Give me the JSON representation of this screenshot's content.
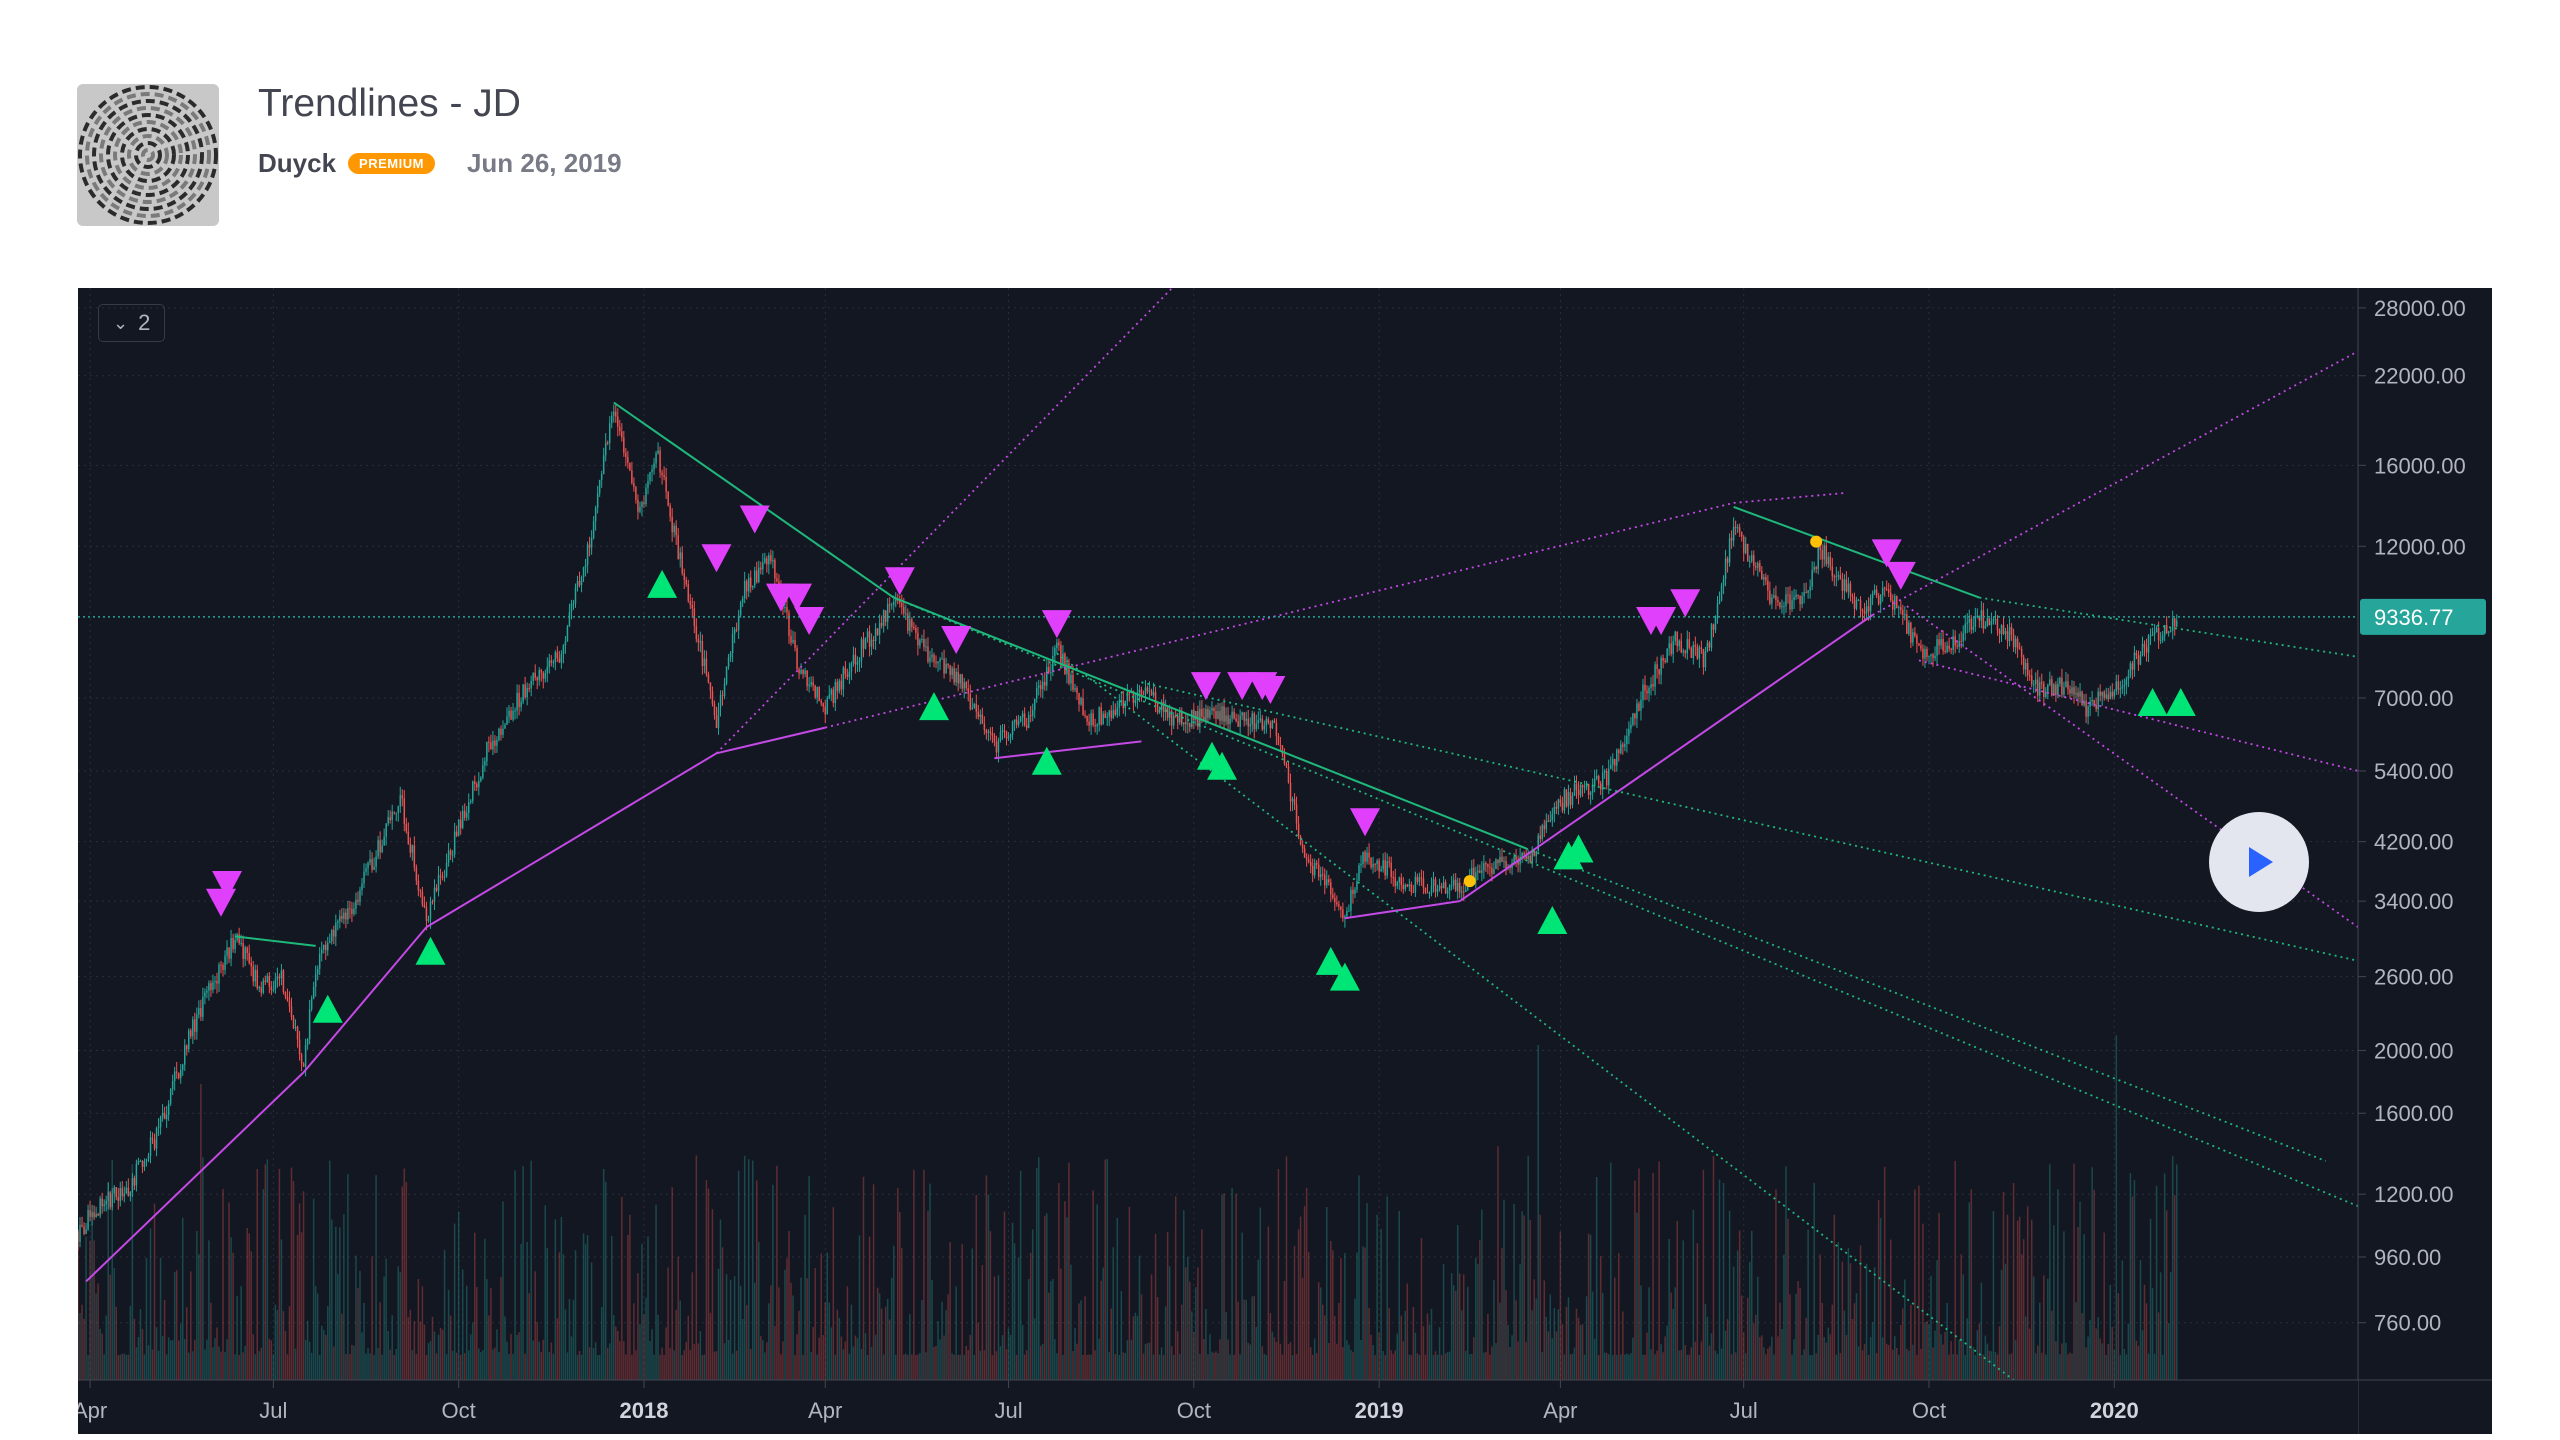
{
  "idea": {
    "title": "Trendlines - JD",
    "author": "Duyck",
    "badge": "PREMIUM",
    "date": "Jun 26, 2019",
    "avatar_icon": "spiral-avatar-icon"
  },
  "legend": {
    "count": "2",
    "icon": "chevron-down-icon"
  },
  "play_icon": "play-icon",
  "colors": {
    "background": "#131722",
    "up": "#26a69a",
    "down": "#ef5350",
    "support": "#c549e6",
    "resistance": "#1fb87b",
    "sell_marker": "#e040fb",
    "buy_marker": "#00e676",
    "last_price": "#26a69a",
    "pivot_dot": "#ffc107"
  },
  "chart_data": {
    "type": "candlestick",
    "y_scale": "log",
    "ylim": [
      620,
      29000
    ],
    "y_ticks": [
      {
        "value": 28000,
        "label": "28000.00"
      },
      {
        "value": 22000,
        "label": "22000.00"
      },
      {
        "value": 16000,
        "label": "16000.00"
      },
      {
        "value": 12000,
        "label": "12000.00"
      },
      {
        "value": 7000,
        "label": "7000.00"
      },
      {
        "value": 5400,
        "label": "5400.00"
      },
      {
        "value": 4200,
        "label": "4200.00"
      },
      {
        "value": 3400,
        "label": "3400.00"
      },
      {
        "value": 2600,
        "label": "2600.00"
      },
      {
        "value": 2000,
        "label": "2000.00"
      },
      {
        "value": 1600,
        "label": "1600.00"
      },
      {
        "value": 1200,
        "label": "1200.00"
      },
      {
        "value": 960,
        "label": "960.00"
      },
      {
        "value": 760,
        "label": "760.00"
      }
    ],
    "last_price": {
      "value": 9336.77,
      "label": "9336.77"
    },
    "x_ticks": [
      {
        "date": "2017-04-01",
        "label": "Apr",
        "bold": false
      },
      {
        "date": "2017-07-01",
        "label": "Jul",
        "bold": false
      },
      {
        "date": "2017-10-01",
        "label": "Oct",
        "bold": false
      },
      {
        "date": "2018-01-01",
        "label": "2018",
        "bold": true
      },
      {
        "date": "2018-04-01",
        "label": "Apr",
        "bold": false
      },
      {
        "date": "2018-07-01",
        "label": "Jul",
        "bold": false
      },
      {
        "date": "2018-10-01",
        "label": "Oct",
        "bold": false
      },
      {
        "date": "2019-01-01",
        "label": "2019",
        "bold": true
      },
      {
        "date": "2019-04-01",
        "label": "Apr",
        "bold": false
      },
      {
        "date": "2019-07-01",
        "label": "Jul",
        "bold": false
      },
      {
        "date": "2019-10-01",
        "label": "Oct",
        "bold": false
      },
      {
        "date": "2020-01-01",
        "label": "2020",
        "bold": true
      }
    ],
    "x_range": [
      "2017-03-26",
      "2020-05-01"
    ],
    "price_path": [
      [
        "2017-03-26",
        1050
      ],
      [
        "2017-04-05",
        1150
      ],
      [
        "2017-04-20",
        1230
      ],
      [
        "2017-05-05",
        1500
      ],
      [
        "2017-05-20",
        2100
      ],
      [
        "2017-06-05",
        2700
      ],
      [
        "2017-06-12",
        3000
      ],
      [
        "2017-06-25",
        2500
      ],
      [
        "2017-07-05",
        2600
      ],
      [
        "2017-07-16",
        1900
      ],
      [
        "2017-07-22",
        2700
      ],
      [
        "2017-08-10",
        3400
      ],
      [
        "2017-08-25",
        4300
      ],
      [
        "2017-09-02",
        4900
      ],
      [
        "2017-09-15",
        3200
      ],
      [
        "2017-09-25",
        3900
      ],
      [
        "2017-10-15",
        5800
      ],
      [
        "2017-11-05",
        7400
      ],
      [
        "2017-11-20",
        8200
      ],
      [
        "2017-12-05",
        12000
      ],
      [
        "2017-12-17",
        19800
      ],
      [
        "2017-12-30",
        13500
      ],
      [
        "2018-01-08",
        16500
      ],
      [
        "2018-01-20",
        11000
      ],
      [
        "2018-02-06",
        6500
      ],
      [
        "2018-02-20",
        10500
      ],
      [
        "2018-03-05",
        11500
      ],
      [
        "2018-03-18",
        8000
      ],
      [
        "2018-04-01",
        6800
      ],
      [
        "2018-04-15",
        8000
      ],
      [
        "2018-05-05",
        9800
      ],
      [
        "2018-05-20",
        8300
      ],
      [
        "2018-06-05",
        7600
      ],
      [
        "2018-06-24",
        5900
      ],
      [
        "2018-07-10",
        6500
      ],
      [
        "2018-07-25",
        8300
      ],
      [
        "2018-08-10",
        6500
      ],
      [
        "2018-08-25",
        6700
      ],
      [
        "2018-09-05",
        7300
      ],
      [
        "2018-09-20",
        6400
      ],
      [
        "2018-10-10",
        6600
      ],
      [
        "2018-11-10",
        6400
      ],
      [
        "2018-11-25",
        4000
      ],
      [
        "2018-12-15",
        3250
      ],
      [
        "2018-12-25",
        4000
      ],
      [
        "2019-01-10",
        3700
      ],
      [
        "2019-01-25",
        3550
      ],
      [
        "2019-02-10",
        3600
      ],
      [
        "2019-02-25",
        3850
      ],
      [
        "2019-03-15",
        3950
      ],
      [
        "2019-04-03",
        4900
      ],
      [
        "2019-04-25",
        5300
      ],
      [
        "2019-05-12",
        7100
      ],
      [
        "2019-05-28",
        8600
      ],
      [
        "2019-06-12",
        8000
      ],
      [
        "2019-06-26",
        12800
      ],
      [
        "2019-07-08",
        11000
      ],
      [
        "2019-07-17",
        9600
      ],
      [
        "2019-07-31",
        10100
      ],
      [
        "2019-08-08",
        11900
      ],
      [
        "2019-08-28",
        9600
      ],
      [
        "2019-09-10",
        10300
      ],
      [
        "2019-09-26",
        8300
      ],
      [
        "2019-10-10",
        8400
      ],
      [
        "2019-10-26",
        9300
      ],
      [
        "2019-11-10",
        8800
      ],
      [
        "2019-11-25",
        7200
      ],
      [
        "2019-12-10",
        7300
      ],
      [
        "2019-12-18",
        6700
      ],
      [
        "2020-01-05",
        7500
      ],
      [
        "2020-01-20",
        8700
      ],
      [
        "2020-02-01",
        9336.77
      ]
    ],
    "support_lines": [
      {
        "from": [
          "2017-03-30",
          880
        ],
        "to": [
          "2017-07-16",
          1850
        ],
        "style": "solid"
      },
      {
        "from": [
          "2017-07-16",
          1850
        ],
        "to": [
          "2017-09-15",
          3100
        ],
        "style": "solid"
      },
      {
        "from": [
          "2017-09-15",
          3100
        ],
        "to": [
          "2018-02-06",
          5750
        ],
        "style": "solid"
      },
      {
        "from": [
          "2018-02-06",
          5750
        ],
        "to": [
          "2018-04-01",
          6300
        ],
        "style": "solid"
      },
      {
        "from": [
          "2018-04-01",
          6300
        ],
        "to": [
          "2019-06-26",
          14000
        ],
        "style": "dotted"
      },
      {
        "from": [
          "2018-06-24",
          5650
        ],
        "to": [
          "2018-09-05",
          6000
        ],
        "style": "solid"
      },
      {
        "from": [
          "2018-12-15",
          3200
        ],
        "to": [
          "2019-02-10",
          3400
        ],
        "style": "solid"
      },
      {
        "from": [
          "2019-02-10",
          3400
        ],
        "to": [
          "2019-09-03",
          9400
        ],
        "style": "solid"
      },
      {
        "from": [
          "2019-09-03",
          9400
        ],
        "to": [
          "2020-05-01",
          24000
        ],
        "style": "dotted"
      },
      {
        "from": [
          "2018-02-06",
          5750
        ],
        "to": [
          "2018-09-20",
          30000
        ],
        "style": "dotted"
      },
      {
        "from": [
          "2019-06-26",
          14000
        ],
        "to": [
          "2019-08-20",
          14500
        ],
        "style": "dotted"
      },
      {
        "from": [
          "2019-09-20",
          9700
        ],
        "to": [
          "2020-05-01",
          3100
        ],
        "style": "dotted"
      },
      {
        "from": [
          "2019-09-26",
          8000
        ],
        "to": [
          "2020-05-01",
          5400
        ],
        "style": "dotted"
      }
    ],
    "resistance_lines": [
      {
        "from": [
          "2017-06-12",
          3000
        ],
        "to": [
          "2017-07-22",
          2900
        ],
        "style": "solid"
      },
      {
        "from": [
          "2017-12-17",
          20000
        ],
        "to": [
          "2018-05-05",
          10000
        ],
        "style": "solid"
      },
      {
        "from": [
          "2018-05-05",
          10000
        ],
        "to": [
          "2019-03-15",
          4100
        ],
        "style": "solid"
      },
      {
        "from": [
          "2018-05-05",
          10000
        ],
        "to": [
          "2020-05-01",
          1150
        ],
        "style": "dotted"
      },
      {
        "from": [
          "2018-07-25",
          8200
        ],
        "to": [
          "2019-11-15",
          610
        ],
        "style": "dotted"
      },
      {
        "from": [
          "2018-09-05",
          7400
        ],
        "to": [
          "2020-05-01",
          2750
        ],
        "style": "dotted"
      },
      {
        "from": [
          "2019-06-26",
          13800
        ],
        "to": [
          "2019-10-26",
          10000
        ],
        "style": "solid"
      },
      {
        "from": [
          "2019-10-26",
          10000
        ],
        "to": [
          "2020-05-01",
          8100
        ],
        "style": "dotted"
      },
      {
        "from": [
          "2019-03-15",
          4100
        ],
        "to": [
          "2020-04-15",
          1350
        ],
        "style": "dotted"
      }
    ],
    "pivot_dots": [
      [
        "2019-02-15",
        3650
      ],
      [
        "2019-08-06",
        12200
      ]
    ],
    "sell_markers": [
      [
        "2017-06-05",
        3380
      ],
      [
        "2017-06-08",
        3600
      ],
      [
        "2018-02-06",
        11500
      ],
      [
        "2018-02-25",
        13200
      ],
      [
        "2018-03-10",
        10000
      ],
      [
        "2018-03-18",
        10000
      ],
      [
        "2018-03-24",
        9200
      ],
      [
        "2018-05-08",
        10600
      ],
      [
        "2018-06-05",
        8600
      ],
      [
        "2018-07-25",
        9100
      ],
      [
        "2018-10-07",
        7300
      ],
      [
        "2018-10-25",
        7300
      ],
      [
        "2018-11-04",
        7300
      ],
      [
        "2018-11-08",
        7200
      ],
      [
        "2018-12-25",
        4500
      ],
      [
        "2019-05-16",
        9200
      ],
      [
        "2019-05-21",
        9200
      ],
      [
        "2019-06-02",
        9800
      ],
      [
        "2019-09-10",
        11700
      ],
      [
        "2019-09-17",
        10800
      ]
    ],
    "buy_markers": [
      [
        "2017-07-28",
        2320
      ],
      [
        "2017-09-17",
        2850
      ],
      [
        "2018-01-10",
        10500
      ],
      [
        "2018-05-25",
        6800
      ],
      [
        "2018-07-20",
        5600
      ],
      [
        "2018-10-10",
        5700
      ],
      [
        "2018-10-15",
        5500
      ],
      [
        "2018-12-08",
        2750
      ],
      [
        "2018-12-15",
        2600
      ],
      [
        "2019-03-28",
        3180
      ],
      [
        "2019-04-05",
        4000
      ],
      [
        "2019-04-10",
        4100
      ],
      [
        "2020-01-20",
        6900
      ],
      [
        "2020-02-03",
        6900
      ]
    ]
  }
}
